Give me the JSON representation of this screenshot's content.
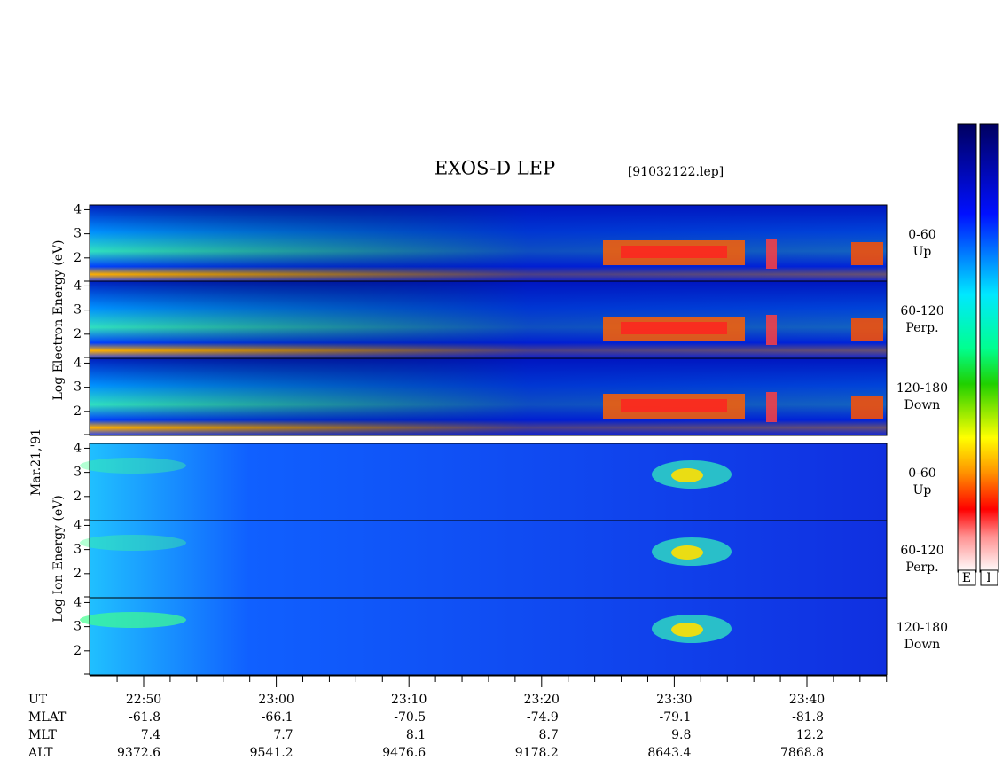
{
  "title": "EXOS-D LEP",
  "file": "[91032122.lep]",
  "groups": [
    {
      "label": "Log Electron Energy (eV)"
    },
    {
      "label": "Log Ion Energy (eV)"
    }
  ],
  "date": "Mar.21,'91",
  "panels": [
    {
      "angle": "0-60",
      "direction": "Up",
      "yticks": [
        2,
        3,
        4
      ]
    },
    {
      "angle": "60-120",
      "direction": "Perp.",
      "yticks": [
        2,
        3,
        4
      ]
    },
    {
      "angle": "120-180",
      "direction": "Down",
      "yticks": [
        2,
        3,
        4
      ]
    },
    {
      "angle": "0-60",
      "direction": "Up",
      "yticks": [
        2,
        3,
        4
      ]
    },
    {
      "angle": "60-120",
      "direction": "Perp.",
      "yticks": [
        2,
        3,
        4
      ]
    },
    {
      "angle": "120-180",
      "direction": "Down",
      "yticks": [
        2,
        3,
        4
      ]
    }
  ],
  "colorbars": [
    "E",
    "I"
  ],
  "footer": {
    "headers": [
      "UT",
      "MLAT",
      "MLT",
      "ALT"
    ],
    "columns": [
      [
        "22:50",
        "-61.8",
        "7.4",
        "9372.6"
      ],
      [
        "23:00",
        "-66.1",
        "7.7",
        "9541.2"
      ],
      [
        "23:10",
        "-70.5",
        "8.1",
        "9476.6"
      ],
      [
        "23:20",
        "-74.9",
        "8.7",
        "9178.2"
      ],
      [
        "23:30",
        "-79.1",
        "9.8",
        "8643.4"
      ],
      [
        "23:40",
        "-81.8",
        "12.2",
        "7868.8"
      ]
    ]
  }
}
